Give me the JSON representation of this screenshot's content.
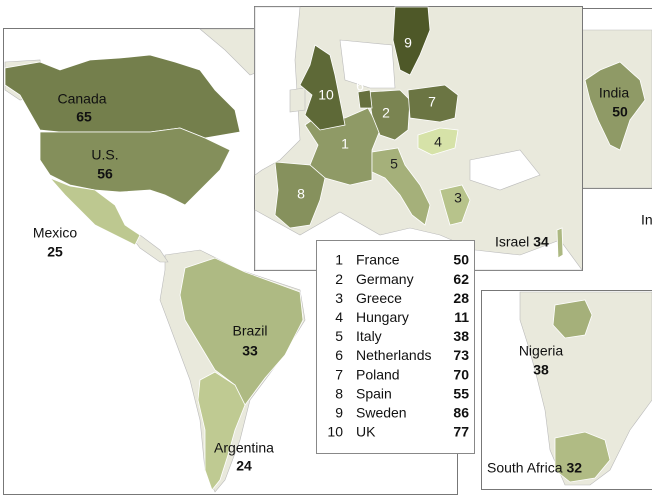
{
  "americas": [
    {
      "name": "Canada",
      "value": 65
    },
    {
      "name": "U.S.",
      "value": 56
    },
    {
      "name": "Mexico",
      "value": 25
    },
    {
      "name": "Brazil",
      "value": 33
    },
    {
      "name": "Argentina",
      "value": 24
    }
  ],
  "europe": [
    {
      "number": 1,
      "name": "France",
      "value": 50
    },
    {
      "number": 2,
      "name": "Germany",
      "value": 62
    },
    {
      "number": 3,
      "name": "Greece",
      "value": 28
    },
    {
      "number": 4,
      "name": "Hungary",
      "value": 11
    },
    {
      "number": 5,
      "name": "Italy",
      "value": 38
    },
    {
      "number": 6,
      "name": "Netherlands",
      "value": 73
    },
    {
      "number": 7,
      "name": "Poland",
      "value": 70
    },
    {
      "number": 8,
      "name": "Spain",
      "value": 55
    },
    {
      "number": 9,
      "name": "Sweden",
      "value": 86
    },
    {
      "number": 10,
      "name": "UK",
      "value": 77
    }
  ],
  "other": [
    {
      "name": "Israel",
      "value": 34
    },
    {
      "name": "India",
      "value": 50
    },
    {
      "name": "Nigeria",
      "value": 38
    },
    {
      "name": "South Africa",
      "value": 32
    }
  ],
  "cutoff_label": "In"
}
